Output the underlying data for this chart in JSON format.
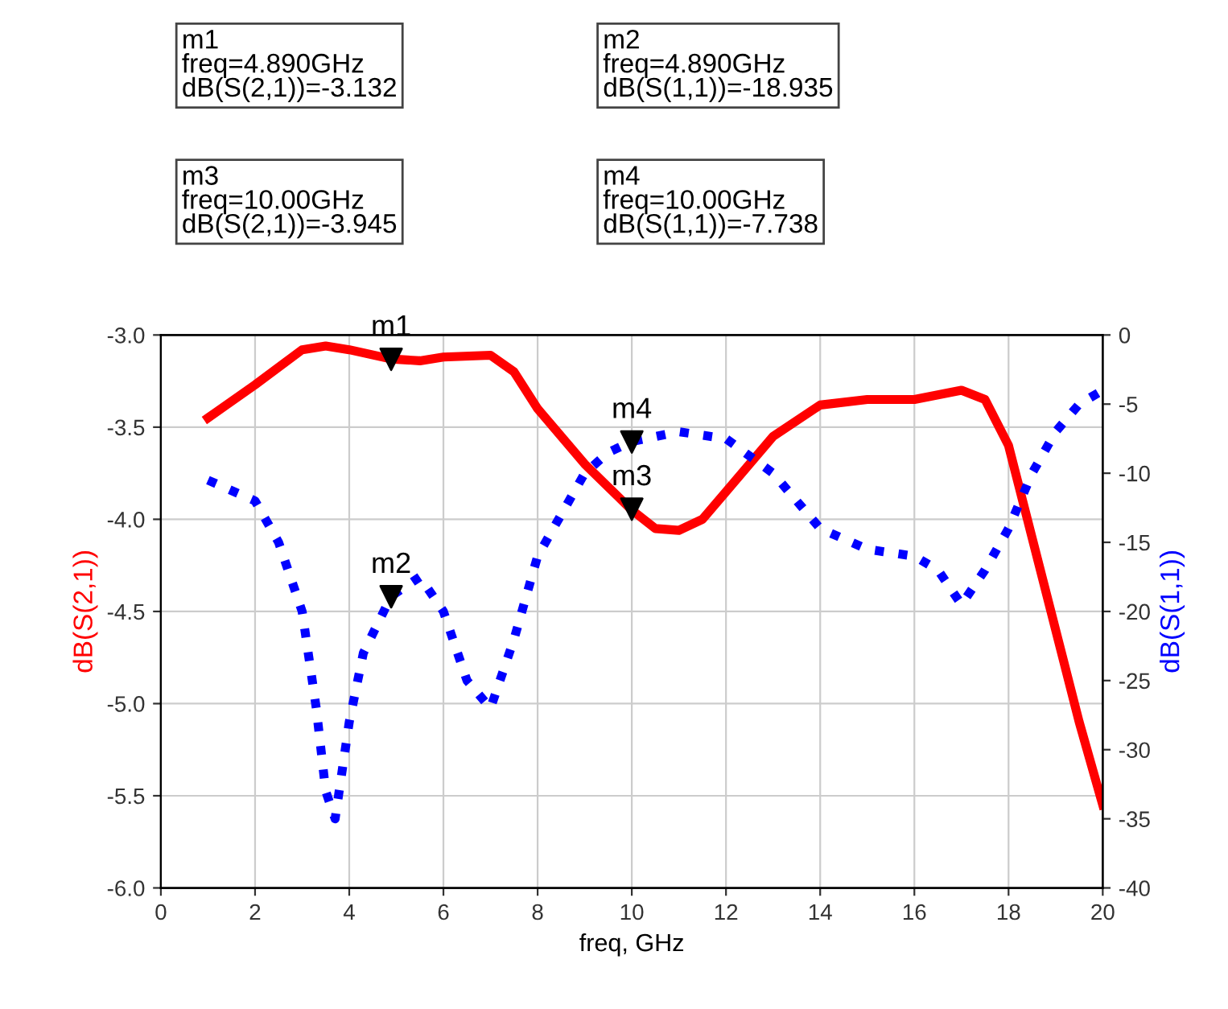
{
  "chart_data": {
    "type": "line",
    "xlabel": "freq, GHz",
    "ylabel": "dB(S(2,1))",
    "y2label": "dB(S(1,1))",
    "xlim": [
      0,
      20
    ],
    "xticks": [
      0,
      2,
      4,
      6,
      8,
      10,
      12,
      14,
      16,
      18,
      20
    ],
    "ylim": [
      -6.0,
      -3.0
    ],
    "yticks": [
      {
        "value": -6.0,
        "label": "-6.0"
      },
      {
        "value": -5.5,
        "label": "-5.5"
      },
      {
        "value": -5.0,
        "label": "-5.0"
      },
      {
        "value": -4.5,
        "label": "-4.5"
      },
      {
        "value": -4.0,
        "label": "-4.0"
      },
      {
        "value": -3.5,
        "label": "-3.5"
      },
      {
        "value": -3.0,
        "label": "-3.0"
      }
    ],
    "y2lim": [
      -40,
      0
    ],
    "y2ticks": [
      -40,
      -35,
      -30,
      -25,
      -20,
      -15,
      -10,
      -5,
      0
    ],
    "grid": true,
    "series": [
      {
        "color": "#ff0000",
        "line_style": "solid",
        "x": [
          1,
          2,
          3,
          3.5,
          4,
          4.89,
          5.5,
          6,
          7,
          7.5,
          8,
          9,
          10,
          10.5,
          11,
          11.5,
          12,
          13,
          14,
          15,
          16,
          17,
          17.5,
          18,
          18.5,
          19,
          19.5,
          20
        ],
        "values": [
          -3.45,
          -3.27,
          -3.08,
          -3.06,
          -3.08,
          -3.13,
          -3.14,
          -3.12,
          -3.11,
          -3.2,
          -3.4,
          -3.7,
          -3.95,
          -4.05,
          -4.06,
          -4.0,
          -3.85,
          -3.55,
          -3.38,
          -3.35,
          -3.35,
          -3.3,
          -3.35,
          -3.6,
          -4.1,
          -4.6,
          -5.1,
          -5.55
        ]
      },
      {
        "color": "#0000ff",
        "line_style": "dotted",
        "axis": "y2",
        "x": [
          1,
          2,
          2.5,
          3,
          3.3,
          3.5,
          3.7,
          4,
          4.3,
          4.89,
          5.5,
          6,
          6.5,
          7,
          7.5,
          8,
          9,
          9.5,
          10,
          11,
          12,
          13,
          14,
          15,
          16,
          16.5,
          17,
          17.5,
          18,
          18.5,
          19,
          19.5,
          20
        ],
        "values": [
          -10.5,
          -12,
          -15,
          -20,
          -27,
          -33,
          -35,
          -28,
          -23,
          -18.9,
          -17.5,
          -20,
          -25,
          -27,
          -22,
          -16,
          -10,
          -8.5,
          -7.7,
          -7,
          -7.5,
          -10,
          -14,
          -15.5,
          -16,
          -17,
          -19.5,
          -17,
          -14,
          -10,
          -7,
          -5,
          -4
        ]
      },
      {
        "type": "scatter",
        "marker": "triangle",
        "color": "#000000",
        "x": [
          4.89,
          10
        ],
        "values": [
          -3.132,
          -3.945
        ]
      },
      {
        "type": "scatter",
        "marker": "triangle",
        "color": "#000000",
        "axis": "y2",
        "x": [
          4.89,
          10
        ],
        "values": [
          -18.935,
          -7.738
        ]
      }
    ],
    "annotations": [
      "m1\nfreq=4.890GHz\ndB(S(2,1))=-3.132",
      "m2\nfreq=4.890GHz\ndB(S(1,1))=-18.935",
      "m3\nfreq=10.00GHz\ndB(S(2,1))=-3.945",
      "m4\nfreq=10.00GHz\ndB(S(1,1))=-7.738",
      {
        "text": "m1",
        "x": 4.89,
        "y": -3.132
      },
      "m2",
      {
        "text": "m3",
        "x": 10,
        "y": -3.945
      },
      "m4"
    ]
  }
}
